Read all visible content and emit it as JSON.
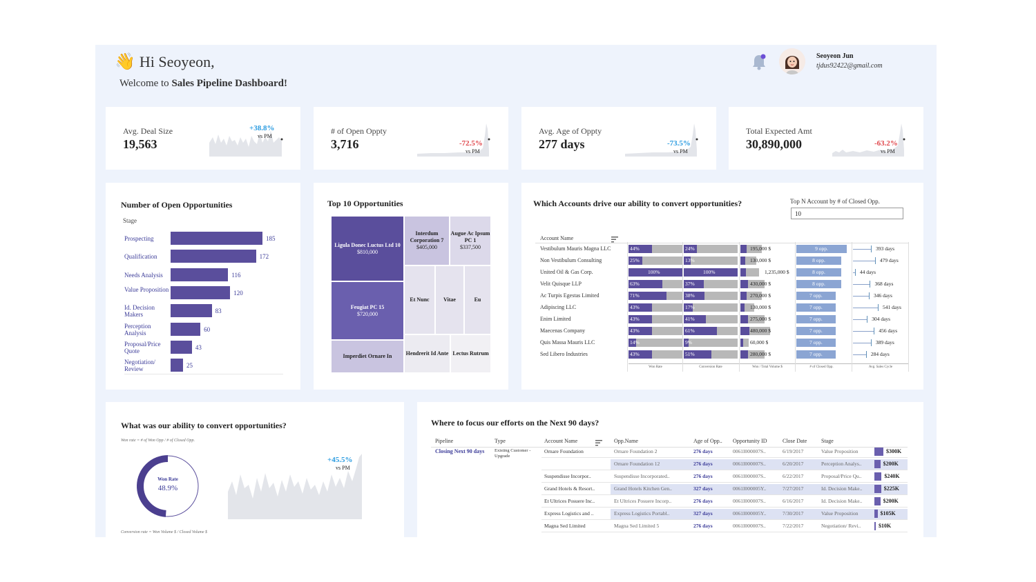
{
  "header": {
    "greeting": "Hi Seoyeon,",
    "welcome_prefix": "Welcome to ",
    "welcome_bold": "Sales Pipeline Dashboard!",
    "user_name": "Seoyeon Jun",
    "user_email": "tjdus92422@gmail.com"
  },
  "kpis": [
    {
      "label": "Avg. Deal Size",
      "value": "19,563",
      "delta": "+38.8%",
      "vs": "vs PM",
      "delta_color": "#2a9be0"
    },
    {
      "label": "# of Open Oppty",
      "value": "3,716",
      "delta": "-72.5%",
      "vs": "vs PM",
      "delta_color": "#e0474c"
    },
    {
      "label": "Avg. Age of Oppty",
      "value": "277 days",
      "delta": "-73.5%",
      "vs": "vs PM",
      "delta_color": "#2a9be0"
    },
    {
      "label": "Total Expected Amt",
      "value": "30,890,000",
      "delta": "-63.2%",
      "vs": "vs PM",
      "delta_color": "#e0474c"
    }
  ],
  "open_opps": {
    "title": "Number of Open Opportunities",
    "stage_header": "Stage",
    "chart_data": {
      "type": "bar",
      "orientation": "horizontal",
      "categories": [
        "Prospecting",
        "Qualification",
        "Needs Analysis",
        "Value Proposition",
        "Id. Decision Makers",
        "Perception Analysis",
        "Proposal/Price Quote",
        "Negotiation/ Review"
      ],
      "values": [
        185,
        172,
        116,
        120,
        83,
        60,
        43,
        25
      ],
      "color": "#5a4e9c"
    }
  },
  "top10": {
    "title": "Top 10 Opportunities",
    "tiles": [
      {
        "name": "Ligula Donec Luctus Ltd 10",
        "amount": "$810,000"
      },
      {
        "name": "Interdum Corporation 7",
        "amount": "$405,000"
      },
      {
        "name": "Augue Ac Ipsum PC 1",
        "amount": "$337,500"
      },
      {
        "name": "Feugiat PC 15",
        "amount": "$720,000"
      },
      {
        "name": "Et Nunc",
        "amount": ""
      },
      {
        "name": "Vitae",
        "amount": ""
      },
      {
        "name": "Eu",
        "amount": ""
      },
      {
        "name": "Imperdiet Ornare In",
        "amount": ""
      },
      {
        "name": "Hendrerit Id Ante",
        "amount": ""
      },
      {
        "name": "Lectus Rutrum",
        "amount": ""
      }
    ]
  },
  "accounts": {
    "title": "Which Accounts drive our ability to convert opportunities?",
    "topn_label": "Top N Account by # of Closed Opp.",
    "topn_value": "10",
    "account_header": "Account Name",
    "col_headers": [
      "Won Rate",
      "Conversion Rate",
      "Won / Total Volume $",
      "# of Closed Opp.",
      "Avg. Sales Cycle"
    ],
    "rows": [
      {
        "name": "Vestibulum Mauris Magna LLC",
        "won": "44%",
        "won_v": 44,
        "conv": "24%",
        "conv_v": 24,
        "vol": "195,000 $",
        "vol_v": 0.4,
        "opp": "9 opp.",
        "opp_v": 9,
        "cycle": "393 days",
        "cycle_v": 393
      },
      {
        "name": "Non Vestibulum Consulting",
        "won": "25%",
        "won_v": 25,
        "conv": "13%",
        "conv_v": 13,
        "vol": "130,000 $",
        "vol_v": 0.3,
        "opp": "8 opp.",
        "opp_v": 8,
        "cycle": "479 days",
        "cycle_v": 479
      },
      {
        "name": "United Oil & Gas Corp.",
        "won": "100%",
        "won_v": 100,
        "conv": "100%",
        "conv_v": 100,
        "vol": "1,235,000 $",
        "vol_v": 0.35,
        "opp": "8 opp.",
        "opp_v": 8,
        "cycle": "44 days",
        "cycle_v": 44
      },
      {
        "name": "Velit Quisque LLP",
        "won": "63%",
        "won_v": 63,
        "conv": "37%",
        "conv_v": 37,
        "vol": "430,000 $",
        "vol_v": 0.45,
        "opp": "8 opp.",
        "opp_v": 8,
        "cycle": "368 days",
        "cycle_v": 368
      },
      {
        "name": "Ac Turpis Egestas Limited",
        "won": "71%",
        "won_v": 71,
        "conv": "38%",
        "conv_v": 38,
        "vol": "270,000 $",
        "vol_v": 0.4,
        "opp": "7 opp.",
        "opp_v": 7,
        "cycle": "346 days",
        "cycle_v": 346
      },
      {
        "name": "Adipiscing LLC",
        "won": "43%",
        "won_v": 43,
        "conv": "17%",
        "conv_v": 17,
        "vol": "130,000 $",
        "vol_v": 0.25,
        "opp": "7 opp.",
        "opp_v": 7,
        "cycle": "541 days",
        "cycle_v": 541
      },
      {
        "name": "Enim Limited",
        "won": "43%",
        "won_v": 43,
        "conv": "41%",
        "conv_v": 41,
        "vol": "275,000 $",
        "vol_v": 0.45,
        "opp": "7 opp.",
        "opp_v": 7,
        "cycle": "304 days",
        "cycle_v": 304
      },
      {
        "name": "Maecenas Company",
        "won": "43%",
        "won_v": 43,
        "conv": "61%",
        "conv_v": 61,
        "vol": "480,000 $",
        "vol_v": 0.55,
        "opp": "7 opp.",
        "opp_v": 7,
        "cycle": "456 days",
        "cycle_v": 456
      },
      {
        "name": "Quis Massa Mauris LLC",
        "won": "14%",
        "won_v": 14,
        "conv": "9%",
        "conv_v": 9,
        "vol": "60,000 $",
        "vol_v": 0.15,
        "opp": "7 opp.",
        "opp_v": 7,
        "cycle": "389 days",
        "cycle_v": 389
      },
      {
        "name": "Sed Libero Industries",
        "won": "43%",
        "won_v": 43,
        "conv": "51%",
        "conv_v": 51,
        "vol": "280,000 $",
        "vol_v": 0.45,
        "opp": "7 opp.",
        "opp_v": 7,
        "cycle": "284 days",
        "cycle_v": 284
      }
    ]
  },
  "convert": {
    "title": "What was our ability to convert opportunities?",
    "note_top": "Won rate = # of Won Opp / # of Closed Opp.",
    "note_bottom": "Conversion rate = Won Volume $ / Closed Volume $",
    "donut_label": "Won Rate",
    "donut_value": "48.9%",
    "donut_fraction": 0.489,
    "delta": "+45.5%",
    "vs": "vs PM"
  },
  "focus": {
    "title": "Where to focus our efforts on the Next 90 days?",
    "headers": [
      "Pipeline",
      "Type",
      "Account Name",
      "Opp.Name",
      "Age of Opp..",
      "Opportunity ID",
      "Close Date",
      "Stage"
    ],
    "pipeline": "Closing Next 90 days",
    "type": "Existing Customer - Upgrade",
    "rows": [
      {
        "account": "Ornare Foundation",
        "opp": "Ornare Foundation 2",
        "age": "276 days",
        "id": "0061I000007S..",
        "date": "6/19/2017",
        "stage": "Value Proposition",
        "amount": "$300K",
        "amount_v": 300
      },
      {
        "account": "",
        "opp": "Ornare Foundation 12",
        "age": "276 days",
        "id": "0061I000007S..",
        "date": "6/20/2017",
        "stage": "Perception Analys..",
        "amount": "$200K",
        "amount_v": 200
      },
      {
        "account": "Suspendisse Incorpor..",
        "opp": "Suspendisse Incorporated..",
        "age": "276 days",
        "id": "0061I000007S..",
        "date": "6/22/2017",
        "stage": "Proposal/Price Qu..",
        "amount": "$240K",
        "amount_v": 240
      },
      {
        "account": "Grand Hotels & Resort..",
        "opp": "Grand Hotels Kitchen Gen..",
        "age": "327 days",
        "id": "0061I000005Y..",
        "date": "7/27/2017",
        "stage": "Id. Decision Make..",
        "amount": "$225K",
        "amount_v": 225
      },
      {
        "account": "Et Ultrices Posuere Inc..",
        "opp": "Et Ultrices Posuere Incorp..",
        "age": "276 days",
        "id": "0061I000007S..",
        "date": "6/16/2017",
        "stage": "Id. Decision Make..",
        "amount": "$200K",
        "amount_v": 200
      },
      {
        "account": "Express Logistics and ..",
        "opp": "Express Logistics Portabl..",
        "age": "327 days",
        "id": "0061I000005Y..",
        "date": "7/30/2017",
        "stage": "Value Proposition",
        "amount": "$105K",
        "amount_v": 105
      },
      {
        "account": "Magna Sed Limited",
        "opp": "Magna Sed Limited 5",
        "age": "276 days",
        "id": "0061I000007S..",
        "date": "7/22/2017",
        "stage": "Negotiation/ Revi..",
        "amount": "$10K",
        "amount_v": 10
      }
    ]
  }
}
